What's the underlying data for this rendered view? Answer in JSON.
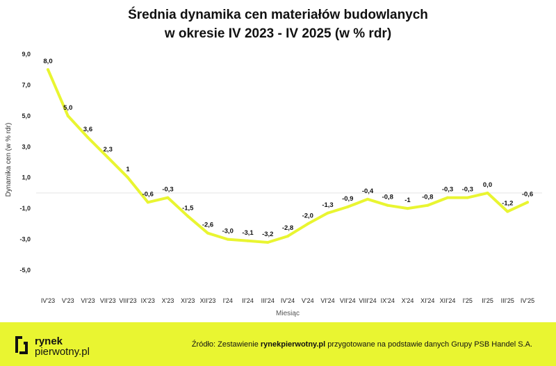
{
  "title_line1": "Średnia dynamika cen materiałów budowlanych",
  "title_line2": "w okresie IV 2023 - IV 2025 (w % rdr)",
  "chart_data": {
    "type": "line",
    "title": "Średnia dynamika cen materiałów budowlanych w okresie IV 2023 - IV 2025 (w % rdr)",
    "xlabel": "Miesiąc",
    "ylabel": "Dynamika cen (w % rdr)",
    "ylim": [
      -6,
      9
    ],
    "yticks": [
      "9,0",
      "7,0",
      "5,0",
      "3,0",
      "1,0",
      "-1,0",
      "-3,0",
      "-5,0"
    ],
    "ytick_values": [
      9,
      7,
      5,
      3,
      1,
      -1,
      -3,
      -5
    ],
    "grid": "horizontal line at 0",
    "line_color": "#e9f531",
    "categories": [
      "IV'23",
      "V'23",
      "VI'23",
      "VII'23",
      "VIII'23",
      "IX'23",
      "X'23",
      "XI'23",
      "XII'23",
      "I'24",
      "II'24",
      "III'24",
      "IV'24",
      "V'24",
      "VI'24",
      "VII'24",
      "VIII'24",
      "IX'24",
      "X'24",
      "XI'24",
      "XII'24",
      "I'25",
      "II'25",
      "III'25",
      "IV'25"
    ],
    "values": [
      8.0,
      5.0,
      3.6,
      2.3,
      1.0,
      -0.6,
      -0.3,
      -1.5,
      -2.6,
      -3.0,
      -3.1,
      -3.2,
      -2.8,
      -2.0,
      -1.3,
      -0.9,
      -0.4,
      -0.8,
      -1.0,
      -0.8,
      -0.3,
      -0.3,
      0.0,
      -1.2,
      -0.6
    ],
    "data_labels": [
      "8,0",
      "5,0",
      "3,6",
      "2,3",
      "1",
      "-0,6",
      "-0,3",
      "-1,5",
      "-2,6",
      "-3,0",
      "-3,1",
      "-3,2",
      "-2,8",
      "-2,0",
      "-1,3",
      "-0,9",
      "-0,4",
      "-0,8",
      "-1",
      "-0,8",
      "-0,3",
      "-0,3",
      "0,0",
      "-1,2",
      "-0,6"
    ]
  },
  "footer": {
    "logo_line1": "rynek",
    "logo_line2": "pierwotny",
    "logo_suffix": ".pl",
    "source_prefix": "Źródło: Zestawienie ",
    "source_site": "rynekpierwotny.pl",
    "source_suffix": " przygotowane na podstawie danych Grupy PSB Handel S.A.",
    "bg_color": "#e9f531"
  }
}
